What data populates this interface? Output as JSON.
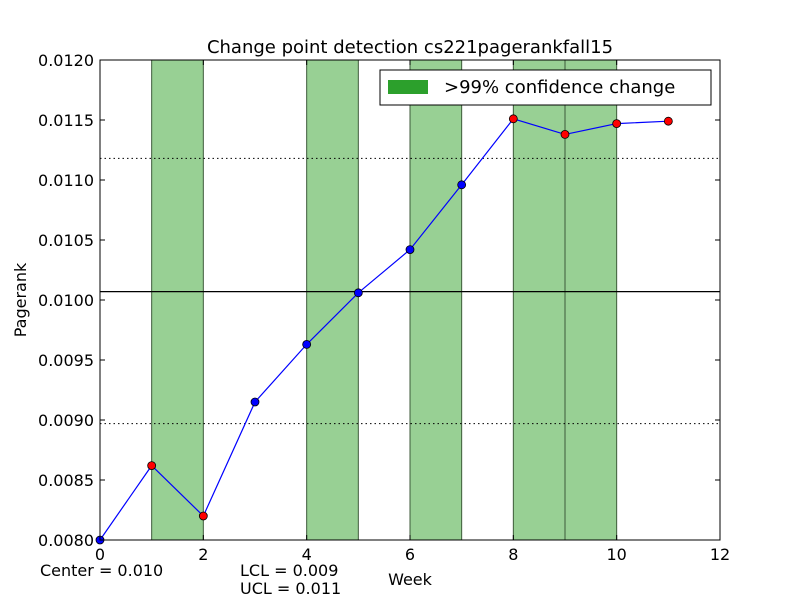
{
  "chart_data": {
    "type": "line",
    "title": "Change point detection cs221pagerankfall15",
    "xlabel": "Week",
    "ylabel": "Pagerank",
    "xlim": [
      0,
      12
    ],
    "ylim": [
      0.008,
      0.012
    ],
    "x_ticks": [
      "0",
      "2",
      "4",
      "6",
      "8",
      "10",
      "12"
    ],
    "y_ticks": [
      "0.0080",
      "0.0085",
      "0.0090",
      "0.0095",
      "0.0100",
      "0.0105",
      "0.0110",
      "0.0115",
      "0.0120"
    ],
    "x_tick_values": [
      0,
      2,
      4,
      6,
      8,
      10,
      12
    ],
    "y_tick_values": [
      0.008,
      0.0085,
      0.009,
      0.0095,
      0.01,
      0.0105,
      0.011,
      0.0115,
      0.012
    ],
    "series": [
      {
        "x": [
          0,
          1,
          2,
          3,
          4,
          5,
          6,
          7,
          8,
          9,
          10,
          11
        ],
        "values": [
          0.008,
          0.00862,
          0.0082,
          0.00915,
          0.00963,
          0.01006,
          0.01042,
          0.01096,
          0.01151,
          0.01138,
          0.01147,
          0.01149
        ],
        "out_of_control": [
          false,
          true,
          true,
          false,
          false,
          false,
          false,
          false,
          true,
          true,
          true,
          true
        ],
        "color": "#0000ff"
      }
    ],
    "center_line": 0.01007,
    "lcl": 0.00897,
    "ucl": 0.01118,
    "change_regions": [
      [
        1,
        2
      ],
      [
        4,
        5
      ],
      [
        6,
        7
      ],
      [
        8,
        9
      ],
      [
        9,
        10
      ]
    ],
    "legend": {
      "label": ">99% confidence change",
      "position": "top-right",
      "color": "#2ca02c"
    },
    "region_color": "#98d094",
    "point_color_normal": "#0000ff",
    "point_color_alert": "#ff0000"
  },
  "annotations": {
    "center": "Center = 0.010",
    "lcl": "LCL = 0.009",
    "ucl": "UCL = 0.011"
  }
}
